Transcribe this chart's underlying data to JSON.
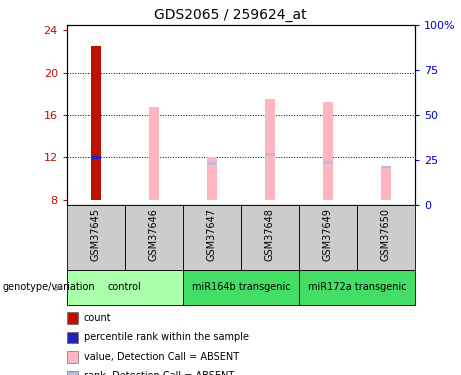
{
  "title": "GDS2065 / 259624_at",
  "samples": [
    "GSM37645",
    "GSM37646",
    "GSM37647",
    "GSM37648",
    "GSM37649",
    "GSM37650"
  ],
  "ylim_left": [
    7.5,
    24.5
  ],
  "ylim_right": [
    0,
    100
  ],
  "yticks_left": [
    8,
    12,
    16,
    20,
    24
  ],
  "yticks_right": [
    0,
    25,
    50,
    75,
    100
  ],
  "yticklabels_right": [
    "0",
    "25",
    "50",
    "75",
    "100%"
  ],
  "bar_bottom": 8,
  "value_bars": {
    "GSM37645": {
      "value": 22.5,
      "color": "#BB1100",
      "rank": 12.0,
      "rank_color": "#2222BB"
    },
    "GSM37646": {
      "value": 16.8,
      "color": "#FFB6C1",
      "rank": 12.0,
      "rank_color": "#FFB6C1"
    },
    "GSM37647": {
      "value": 12.0,
      "color": "#FFB6C1",
      "rank": 11.4,
      "rank_color": "#BBBBDD"
    },
    "GSM37648": {
      "value": 17.5,
      "color": "#FFB6C1",
      "rank": 12.3,
      "rank_color": "#BBBBDD"
    },
    "GSM37649": {
      "value": 17.2,
      "color": "#FFB6C1",
      "rank": 11.5,
      "rank_color": "#BBBBDD"
    },
    "GSM37650": {
      "value": 11.2,
      "color": "#FFB6C1",
      "rank": 11.1,
      "rank_color": "#BBBBDD"
    }
  },
  "bar_width": 0.18,
  "rank_bar_width": 0.18,
  "rank_bar_height": 0.25,
  "legend_items": [
    {
      "label": "count",
      "color": "#BB1100"
    },
    {
      "label": "percentile rank within the sample",
      "color": "#2222BB"
    },
    {
      "label": "value, Detection Call = ABSENT",
      "color": "#FFB6C1"
    },
    {
      "label": "rank, Detection Call = ABSENT",
      "color": "#BBBBDD"
    }
  ],
  "grid_color": "black",
  "grid_linestyle": ":",
  "grid_linewidth": 0.7,
  "sample_area_color": "#CCCCCC",
  "group_area_color_light": "#AAFFAA",
  "group_area_color_dark": "#44DD66",
  "groups": [
    {
      "start": 0,
      "end": 1,
      "label": "control",
      "color": "#AAFFAA"
    },
    {
      "start": 2,
      "end": 3,
      "label": "miR164b transgenic",
      "color": "#44DD66"
    },
    {
      "start": 4,
      "end": 5,
      "label": "miR172a transgenic",
      "color": "#44DD66"
    }
  ]
}
